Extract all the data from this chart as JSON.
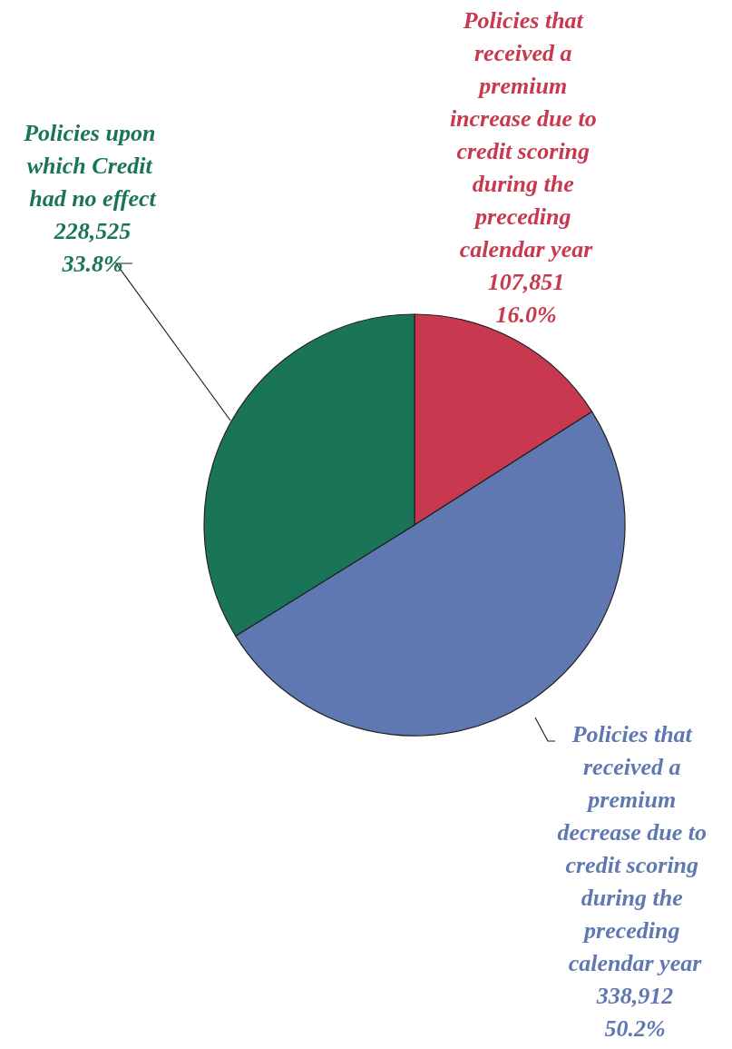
{
  "chart_data": {
    "type": "pie",
    "categories": [
      "Policies that received a premium increase due to credit scoring during the preceding calendar year",
      "Policies that received a premium decrease due to credit scoring during the preceding calendar year",
      "Policies upon which Credit had no effect"
    ],
    "values": [
      107851,
      338912,
      228525
    ],
    "value_labels": [
      "107,851\n16.0%",
      "338,912\n50.2%",
      "228,525\n33.8%"
    ],
    "colors": [
      "#c8384e",
      "#5f78b2",
      "#1a7558"
    ],
    "legend": false
  }
}
